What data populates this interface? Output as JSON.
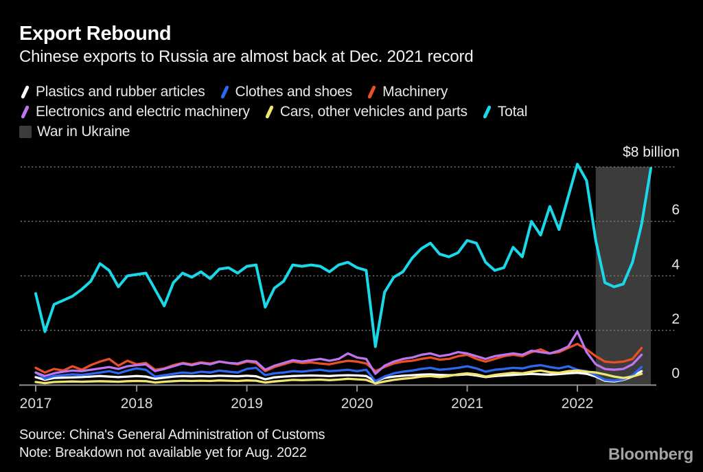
{
  "header": {
    "title": "Export Rebound",
    "subtitle": "Chinese exports to Russia are almost back at Dec. 2021 record"
  },
  "footer": {
    "source": "Source: China's General Administration of Customs",
    "note": "Note: Breakdown not available yet for Aug. 2022",
    "brand": "Bloomberg"
  },
  "colors": {
    "background": "#000000",
    "gridline": "#787878",
    "axis": "#919191",
    "band": "#3c3c3c"
  },
  "chart_data": {
    "type": "line",
    "title": "Export Rebound",
    "subtitle": "Chinese exports to Russia are almost back at Dec. 2021 record",
    "unit_label": "$8 billion",
    "x_unit": "month",
    "x_range": [
      "2017-01",
      "2022-08"
    ],
    "x_ticks": [
      2017,
      2018,
      2019,
      2020,
      2021,
      2022
    ],
    "ylim": [
      0,
      8.2
    ],
    "gridlines": [
      2,
      4,
      6,
      8
    ],
    "y_right_labels": [
      0,
      2,
      4,
      6
    ],
    "grid": "dotted-horizontal",
    "legend_position": "top-left",
    "band": {
      "label": "War in Ukraine",
      "from": "2022-02",
      "to": "2022-08",
      "color": "#3c3c3c"
    },
    "series": [
      {
        "name": "Plastics and rubber articles",
        "color": "#ffffff",
        "x_end": "2022-07",
        "values": [
          0.28,
          0.18,
          0.25,
          0.26,
          0.27,
          0.28,
          0.3,
          0.32,
          0.3,
          0.28,
          0.3,
          0.32,
          0.3,
          0.22,
          0.26,
          0.3,
          0.32,
          0.31,
          0.32,
          0.31,
          0.33,
          0.32,
          0.31,
          0.33,
          0.31,
          0.2,
          0.27,
          0.3,
          0.32,
          0.33,
          0.34,
          0.33,
          0.32,
          0.34,
          0.35,
          0.34,
          0.32,
          0.12,
          0.25,
          0.3,
          0.33,
          0.35,
          0.37,
          0.38,
          0.36,
          0.35,
          0.36,
          0.38,
          0.34,
          0.28,
          0.32,
          0.34,
          0.36,
          0.38,
          0.4,
          0.38,
          0.37,
          0.39,
          0.42,
          0.44,
          0.4,
          0.3,
          0.15,
          0.12,
          0.18,
          0.3,
          0.5
        ]
      },
      {
        "name": "Clothes and shoes",
        "color": "#2d68ee",
        "x_end": "2022-07",
        "values": [
          0.45,
          0.22,
          0.32,
          0.35,
          0.38,
          0.36,
          0.4,
          0.45,
          0.5,
          0.42,
          0.52,
          0.6,
          0.55,
          0.3,
          0.35,
          0.4,
          0.45,
          0.42,
          0.48,
          0.45,
          0.52,
          0.48,
          0.45,
          0.58,
          0.62,
          0.35,
          0.42,
          0.45,
          0.5,
          0.48,
          0.52,
          0.55,
          0.5,
          0.52,
          0.55,
          0.5,
          0.55,
          0.13,
          0.3,
          0.42,
          0.48,
          0.52,
          0.58,
          0.62,
          0.55,
          0.58,
          0.62,
          0.68,
          0.6,
          0.48,
          0.55,
          0.58,
          0.62,
          0.6,
          0.68,
          0.72,
          0.65,
          0.6,
          0.68,
          0.55,
          0.5,
          0.35,
          0.18,
          0.15,
          0.2,
          0.35,
          0.65
        ]
      },
      {
        "name": "Machinery",
        "color": "#ea4f26",
        "x_end": "2022-07",
        "values": [
          0.62,
          0.45,
          0.58,
          0.52,
          0.68,
          0.55,
          0.72,
          0.85,
          0.95,
          0.7,
          0.88,
          0.75,
          0.8,
          0.55,
          0.6,
          0.72,
          0.8,
          0.75,
          0.82,
          0.78,
          0.85,
          0.8,
          0.75,
          0.85,
          0.8,
          0.5,
          0.65,
          0.75,
          0.85,
          0.8,
          0.82,
          0.78,
          0.75,
          0.82,
          0.88,
          0.85,
          0.78,
          0.5,
          0.65,
          0.78,
          0.85,
          0.88,
          0.95,
          1.0,
          0.92,
          0.95,
          1.05,
          1.1,
          0.95,
          0.85,
          0.95,
          1.05,
          1.1,
          1.05,
          1.2,
          1.3,
          1.15,
          1.2,
          1.35,
          1.5,
          1.3,
          1.05,
          0.85,
          0.82,
          0.85,
          0.95,
          1.35
        ]
      },
      {
        "name": "Electronics and electric machinery",
        "color": "#bd76ee",
        "x_end": "2022-07",
        "values": [
          0.45,
          0.32,
          0.42,
          0.48,
          0.52,
          0.5,
          0.55,
          0.6,
          0.65,
          0.58,
          0.68,
          0.72,
          0.75,
          0.5,
          0.58,
          0.68,
          0.78,
          0.72,
          0.8,
          0.75,
          0.85,
          0.8,
          0.78,
          0.88,
          0.85,
          0.55,
          0.7,
          0.8,
          0.9,
          0.85,
          0.9,
          0.95,
          0.88,
          0.95,
          1.15,
          1.0,
          0.95,
          0.4,
          0.7,
          0.85,
          0.95,
          1.0,
          1.1,
          1.15,
          1.05,
          1.1,
          1.2,
          1.15,
          1.05,
          0.95,
          1.05,
          1.1,
          1.15,
          1.1,
          1.25,
          1.2,
          1.15,
          1.25,
          1.4,
          1.95,
          1.2,
          0.75,
          0.58,
          0.55,
          0.58,
          0.75,
          1.1
        ]
      },
      {
        "name": "Cars, other vehicles and parts",
        "color": "#f1e571",
        "x_end": "2022-07",
        "values": [
          0.1,
          0.06,
          0.1,
          0.11,
          0.12,
          0.11,
          0.12,
          0.13,
          0.12,
          0.11,
          0.13,
          0.14,
          0.13,
          0.08,
          0.11,
          0.13,
          0.15,
          0.14,
          0.15,
          0.14,
          0.16,
          0.15,
          0.14,
          0.16,
          0.15,
          0.08,
          0.12,
          0.15,
          0.18,
          0.17,
          0.18,
          0.19,
          0.17,
          0.19,
          0.22,
          0.2,
          0.18,
          0.05,
          0.12,
          0.18,
          0.22,
          0.25,
          0.3,
          0.32,
          0.28,
          0.32,
          0.38,
          0.42,
          0.38,
          0.3,
          0.36,
          0.4,
          0.44,
          0.42,
          0.48,
          0.52,
          0.46,
          0.44,
          0.5,
          0.52,
          0.48,
          0.45,
          0.38,
          0.3,
          0.25,
          0.3,
          0.4
        ]
      },
      {
        "name": "Total",
        "color": "#1bd8e8",
        "x_end": "2022-08",
        "values": [
          3.35,
          1.95,
          2.95,
          3.1,
          3.25,
          3.5,
          3.8,
          4.45,
          4.2,
          3.6,
          4.0,
          4.05,
          4.1,
          3.5,
          2.9,
          3.75,
          4.1,
          3.95,
          4.15,
          3.9,
          4.25,
          4.3,
          4.1,
          4.35,
          4.4,
          2.85,
          3.55,
          3.8,
          4.4,
          4.35,
          4.4,
          4.35,
          4.15,
          4.4,
          4.5,
          4.3,
          4.2,
          1.4,
          3.4,
          3.95,
          4.15,
          4.65,
          5.0,
          5.2,
          4.8,
          4.7,
          4.85,
          5.3,
          5.2,
          4.5,
          4.2,
          4.3,
          5.05,
          4.7,
          6.0,
          5.5,
          6.55,
          5.7,
          6.9,
          8.1,
          7.5,
          5.3,
          3.75,
          3.6,
          3.7,
          4.5,
          5.9,
          7.95
        ]
      }
    ],
    "legend_rows": [
      [
        0,
        1,
        2
      ],
      [
        3,
        4,
        5
      ],
      [
        "band"
      ]
    ]
  }
}
